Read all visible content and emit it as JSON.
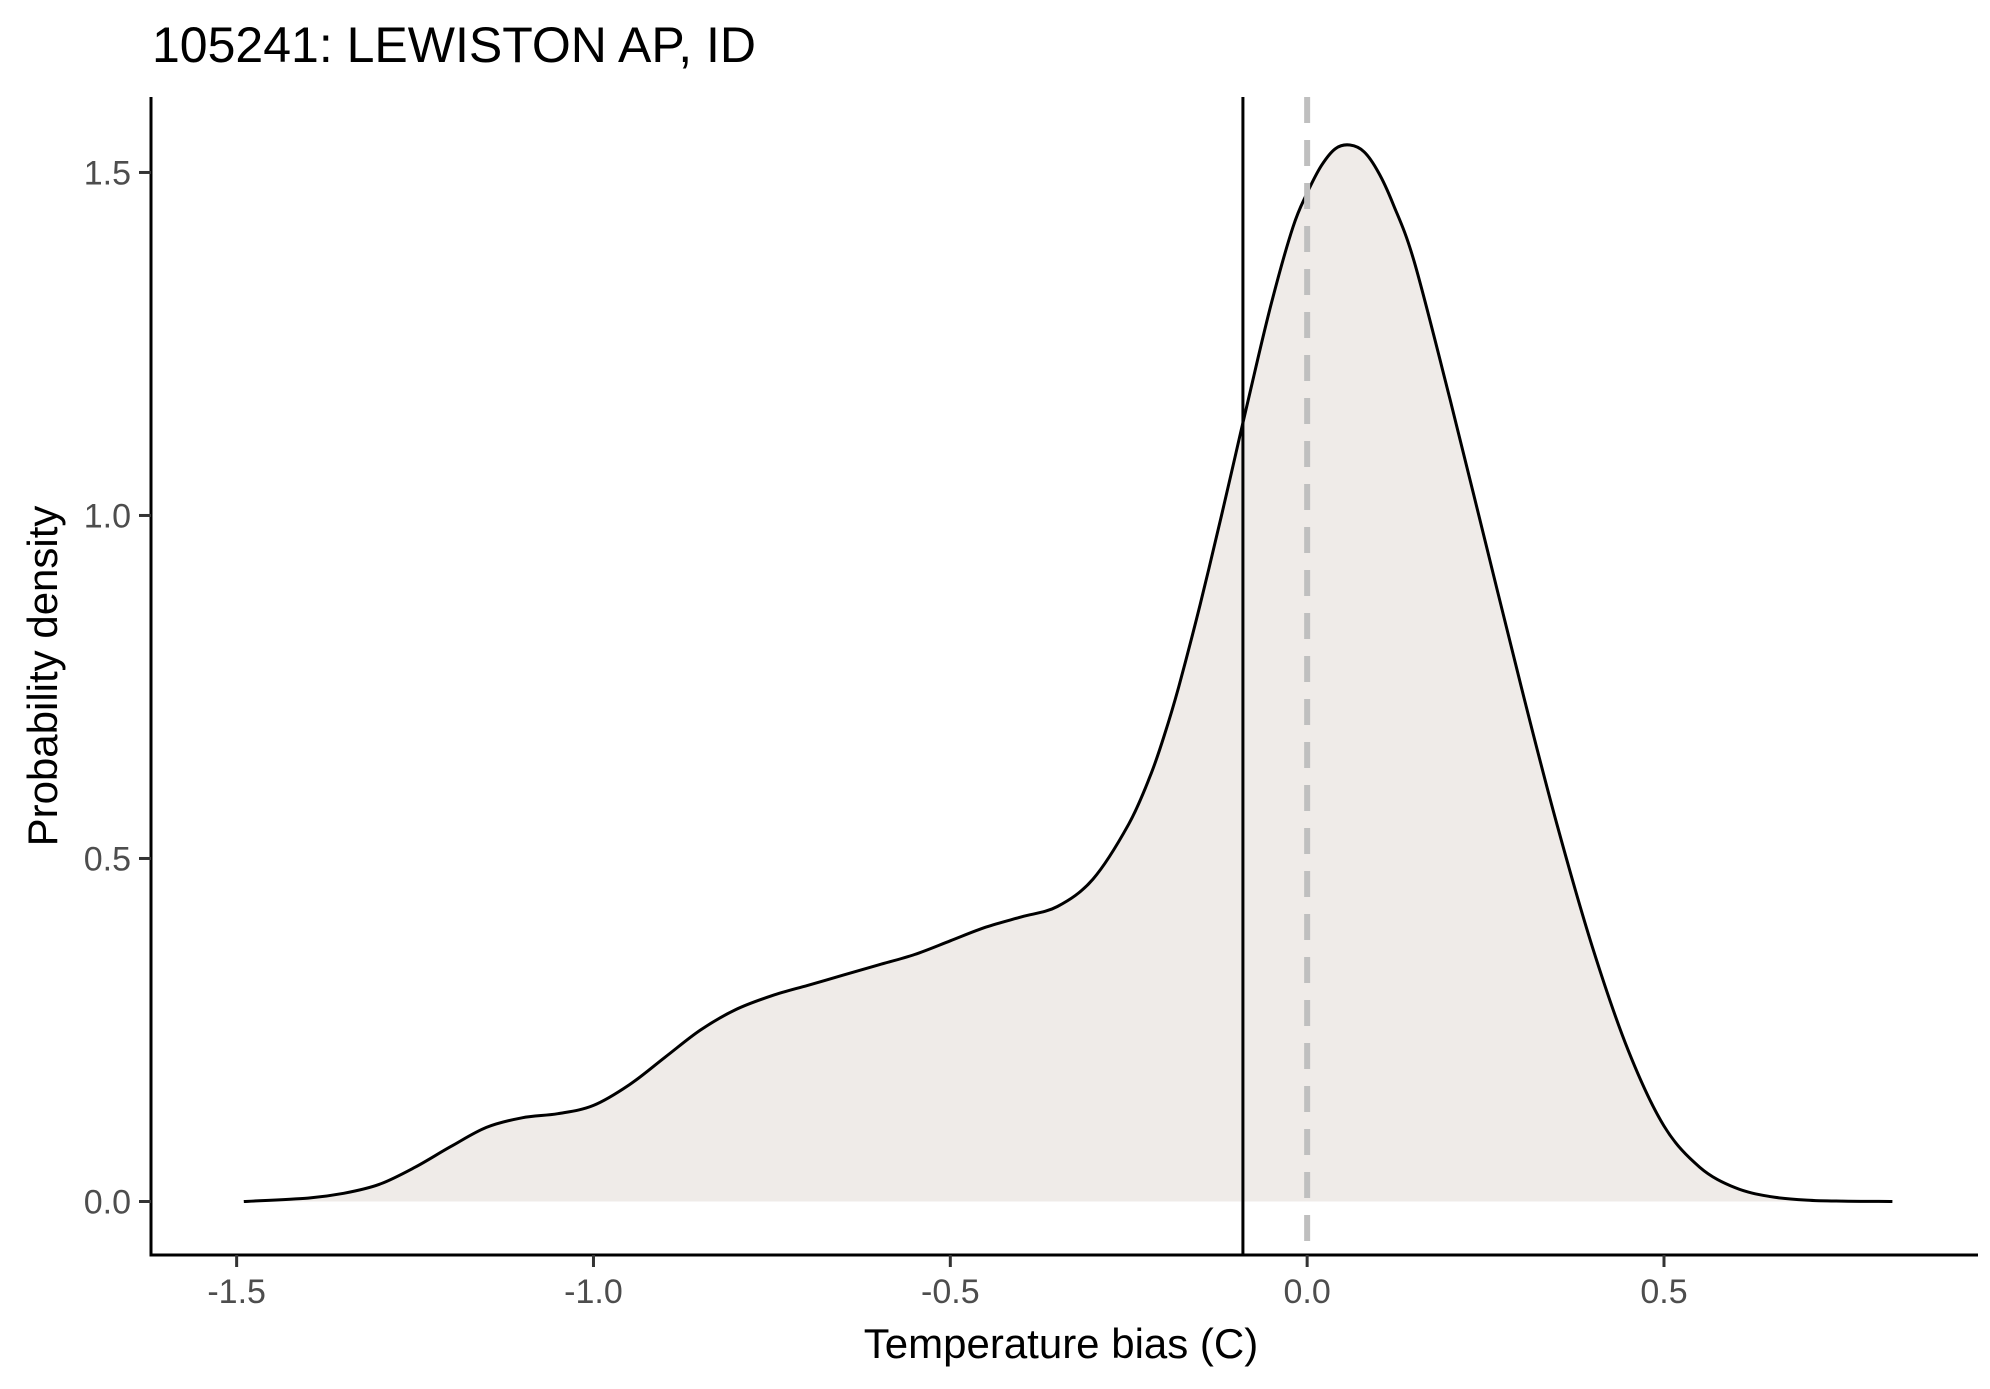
{
  "chart_data": {
    "type": "area",
    "subtype": "density",
    "title": "105241: LEWISTON AP, ID",
    "xlabel": "Temperature bias (C)",
    "ylabel": "Probability density",
    "xlim": [
      -1.62,
      0.94
    ],
    "ylim": [
      -0.078,
      1.61
    ],
    "x_ticks": [
      -1.5,
      -1.0,
      -0.5,
      0.0,
      0.5
    ],
    "x_tick_labels": [
      "-1.5",
      "-1.0",
      "-0.5",
      "0.0",
      "0.5"
    ],
    "y_ticks": [
      0.0,
      0.5,
      1.0,
      1.5
    ],
    "y_tick_labels": [
      "0.0",
      "0.5",
      "1.0",
      "1.5"
    ],
    "grid": false,
    "fill_color": "#efebe8",
    "line_color": "#000000",
    "density": {
      "x": [
        -1.49,
        -1.4,
        -1.35,
        -1.3,
        -1.25,
        -1.2,
        -1.15,
        -1.1,
        -1.05,
        -1.0,
        -0.95,
        -0.9,
        -0.85,
        -0.8,
        -0.75,
        -0.7,
        -0.65,
        -0.6,
        -0.55,
        -0.5,
        -0.45,
        -0.4,
        -0.35,
        -0.3,
        -0.25,
        -0.22,
        -0.2,
        -0.18,
        -0.15,
        -0.12,
        -0.1,
        -0.08,
        -0.05,
        -0.02,
        0.0,
        0.02,
        0.04,
        0.06,
        0.08,
        0.1,
        0.12,
        0.15,
        0.2,
        0.25,
        0.3,
        0.35,
        0.4,
        0.45,
        0.5,
        0.55,
        0.6,
        0.65,
        0.7,
        0.75,
        0.82
      ],
      "y": [
        0.0,
        0.005,
        0.012,
        0.025,
        0.05,
        0.08,
        0.108,
        0.122,
        0.128,
        0.14,
        0.17,
        0.21,
        0.25,
        0.28,
        0.3,
        0.315,
        0.33,
        0.345,
        0.36,
        0.38,
        0.4,
        0.415,
        0.43,
        0.47,
        0.55,
        0.62,
        0.68,
        0.75,
        0.87,
        1.0,
        1.09,
        1.18,
        1.31,
        1.42,
        1.47,
        1.51,
        1.535,
        1.54,
        1.53,
        1.5,
        1.455,
        1.37,
        1.17,
        0.96,
        0.75,
        0.55,
        0.37,
        0.22,
        0.11,
        0.05,
        0.02,
        0.007,
        0.002,
        0.0005,
        0.0
      ]
    },
    "reference_lines": [
      {
        "name": "mean-bias",
        "x": -0.09,
        "style": "solid",
        "color": "#000000"
      },
      {
        "name": "zero-bias",
        "x": 0.0,
        "style": "dashed",
        "color": "#bfbfbf"
      }
    ]
  }
}
